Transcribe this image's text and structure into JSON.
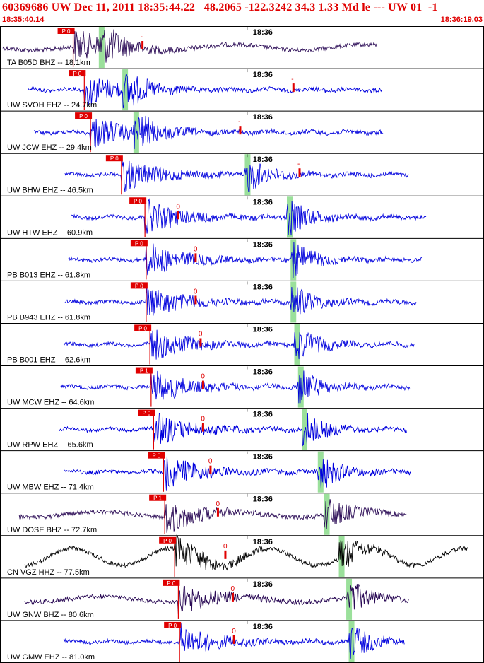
{
  "header": {
    "title": "60369686 UW Dec 11, 2011 18:35:44.22   48.2065 -122.3242 34.3 1.33 Md le --- UW 01  -1",
    "start_time": "18:35:40.14",
    "end_time": "18:36:19.03"
  },
  "colors": {
    "title": "#e00000",
    "pick_marker": "#e00000",
    "s_window": "#9be09b",
    "trace_blue": "#0000dd",
    "trace_purple": "#2a0a55",
    "trace_black": "#000000"
  },
  "chart_data": {
    "type": "line",
    "title": "60369686 UW Dec 11, 2011 18:35:44.22   48.2065 -122.3242 34.3 1.33 Md le --- UW 01  -1",
    "x_unit": "seconds after 18:35:40.14",
    "xlim": [
      0,
      38.89
    ],
    "minute_tick": {
      "label": "18:36",
      "seconds": 19.86
    },
    "series": [
      {
        "name": "TA B05D BHZ -- 18.1km",
        "p_label": "P 0",
        "p_time": 5.8,
        "coda_label": "-",
        "coda_time": 11.4,
        "s_time": 8.1,
        "color": "purple"
      },
      {
        "name": "UW SVOH EHZ -- 24.7km",
        "p_label": "P 0",
        "p_time": 6.7,
        "coda_label": "-",
        "coda_time": 23.6,
        "s_time": 10.0,
        "color": "blue"
      },
      {
        "name": "UW JCW EHZ -- 29.4km",
        "p_label": "P 0",
        "p_time": 7.2,
        "coda_label": "-",
        "coda_time": 19.3,
        "s_time": 10.9,
        "color": "blue"
      },
      {
        "name": "UW BHW EHZ -- 46.5km",
        "p_label": "P 0",
        "p_time": 9.7,
        "coda_label": "-",
        "coda_time": 24.1,
        "s_time": 19.9,
        "color": "blue"
      },
      {
        "name": "UW HTW EHZ -- 60.9km",
        "p_label": "P 0",
        "p_time": 11.6,
        "coda_label": "0",
        "coda_time": 14.3,
        "s_time": 23.3,
        "color": "blue"
      },
      {
        "name": "PB B013 EHZ -- 61.8km",
        "p_label": "P 0",
        "p_time": 11.7,
        "coda_label": "0",
        "coda_time": 15.7,
        "s_time": 23.6,
        "color": "blue"
      },
      {
        "name": "PB B943 EHZ -- 61.8km",
        "p_label": "P 0",
        "p_time": 11.7,
        "coda_label": "0",
        "coda_time": 15.7,
        "s_time": 23.6,
        "color": "blue"
      },
      {
        "name": "PB B001 EHZ -- 62.6km",
        "p_label": "P 0",
        "p_time": 12.0,
        "coda_label": "0",
        "coda_time": 16.1,
        "s_time": 23.9,
        "color": "blue"
      },
      {
        "name": "UW MCW EHZ -- 64.6km",
        "p_label": "P 1",
        "p_time": 12.1,
        "coda_label": "0",
        "coda_time": 16.3,
        "s_time": 24.2,
        "color": "blue"
      },
      {
        "name": "UW RPW EHZ -- 65.6km",
        "p_label": "P 0",
        "p_time": 12.3,
        "coda_label": "0",
        "coda_time": 16.3,
        "s_time": 24.5,
        "color": "blue"
      },
      {
        "name": "UW MBW EHZ -- 71.4km",
        "p_label": "P 0",
        "p_time": 13.1,
        "coda_label": "0",
        "coda_time": 16.9,
        "s_time": 25.8,
        "color": "blue"
      },
      {
        "name": "UW DOSE BHZ -- 72.7km",
        "p_label": "P 1",
        "p_time": 13.2,
        "coda_label": "0",
        "coda_time": 17.5,
        "s_time": 26.3,
        "color": "purple"
      },
      {
        "name": "CN VGZ HHZ -- 77.5km",
        "p_label": "P 0",
        "p_time": 14.0,
        "coda_label": "0",
        "coda_time": 18.1,
        "s_time": 27.5,
        "color": "black"
      },
      {
        "name": "UW GNW BHZ -- 80.6km",
        "p_label": "P 0",
        "p_time": 14.3,
        "coda_label": "0",
        "coda_time": 18.7,
        "s_time": 28.1,
        "color": "purple"
      },
      {
        "name": "UW GMW EHZ -- 81.0km",
        "p_label": "P 0",
        "p_time": 14.4,
        "coda_label": "0",
        "coda_time": 18.8,
        "s_time": 28.3,
        "color": "blue"
      }
    ]
  }
}
